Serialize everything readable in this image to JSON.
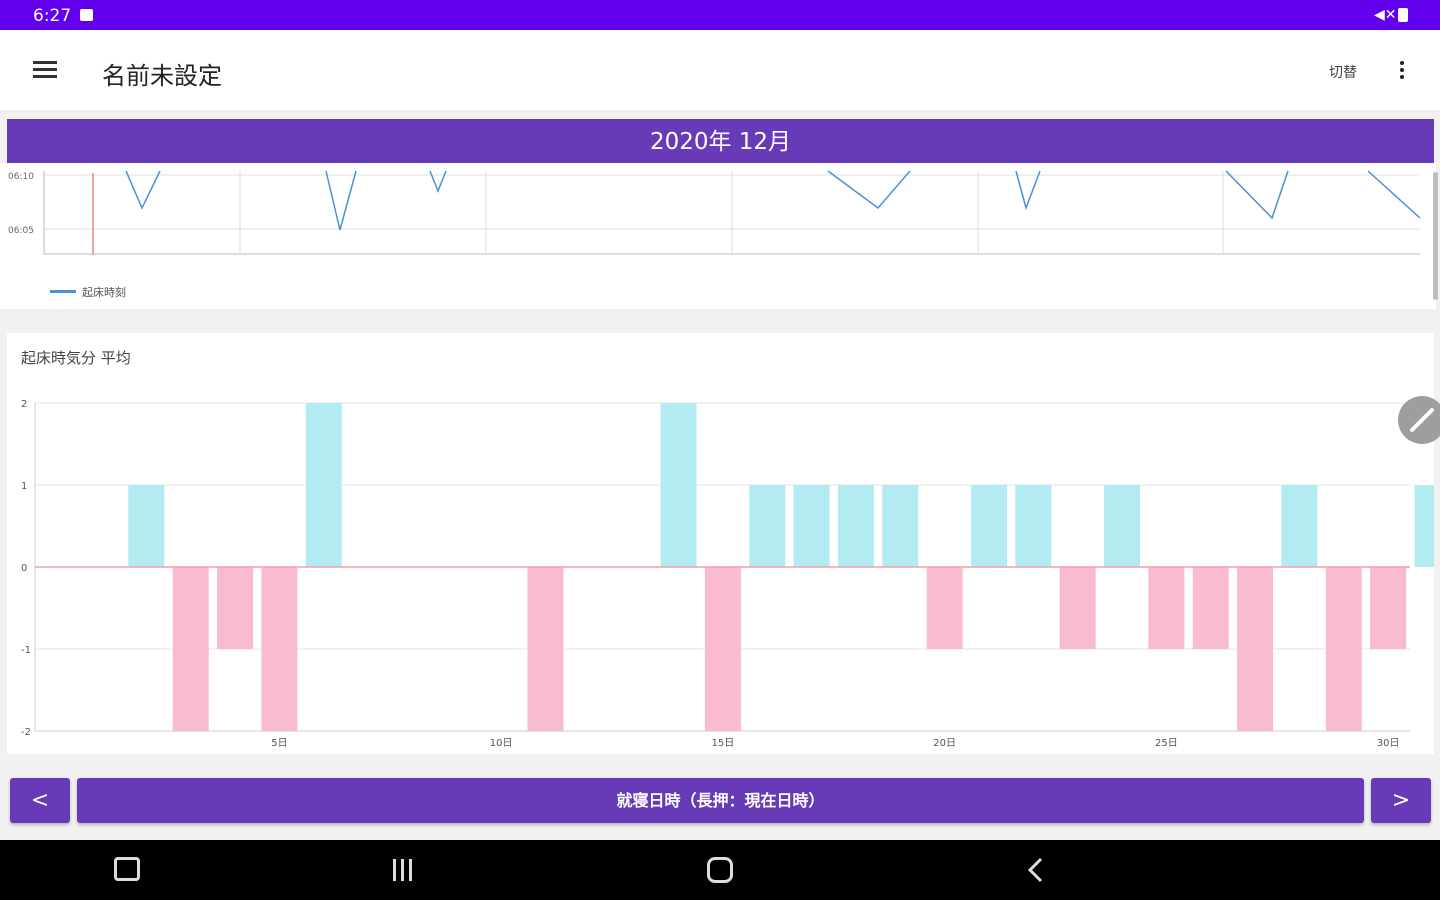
{
  "status_bar": {
    "time": "6:27",
    "icons": [
      "image-icon",
      "volume-mute-icon",
      "battery-icon"
    ]
  },
  "app_bar": {
    "title": "名前未設定",
    "switch_label": "切替",
    "menu_icon": "hamburger-icon",
    "overflow_icon": "more-vert-icon"
  },
  "month_header": {
    "label": "2020年 12月"
  },
  "top_chart": {
    "type": "line",
    "y_ticks": [
      "06:10",
      "06:05"
    ],
    "legend": "起床時刻",
    "line_color": "#4a90d9",
    "today_marker_color": "#f4a0a8"
  },
  "bar_chart_title": "起床時気分 平均",
  "chart_data": {
    "type": "bar",
    "title": "起床時気分 平均",
    "x": [
      1,
      2,
      3,
      4,
      5,
      6,
      7,
      8,
      9,
      10,
      11,
      12,
      13,
      14,
      15,
      16,
      17,
      18,
      19,
      20,
      21,
      22,
      23,
      24,
      25,
      26,
      27,
      28,
      29,
      30,
      31
    ],
    "values": [
      0,
      1,
      -2,
      -1,
      -2,
      2,
      0,
      0,
      0,
      0,
      -2,
      0,
      0,
      2,
      -2,
      1,
      1,
      1,
      1,
      -1,
      1,
      1,
      -1,
      1,
      -1,
      -1,
      -2,
      1,
      -2,
      -1,
      1
    ],
    "y_ticks": [
      "2",
      "1",
      "0",
      "-1",
      "-2"
    ],
    "x_ticks": [
      {
        "day": 5,
        "label": "5日"
      },
      {
        "day": 10,
        "label": "10日"
      },
      {
        "day": 15,
        "label": "15日"
      },
      {
        "day": 20,
        "label": "20日"
      },
      {
        "day": 25,
        "label": "25日"
      },
      {
        "day": 30,
        "label": "30日"
      }
    ],
    "ylim": [
      -2,
      2
    ],
    "positive_color": "#b2ebf2",
    "negative_color": "#f8bbd0",
    "zero_line_color": "#f4a0a8"
  },
  "bottom_buttons": {
    "prev": "<",
    "next": ">",
    "main": "就寝日時（長押：現在日時）"
  },
  "nav_bar": {
    "icons": [
      "screenshot-icon",
      "recents-icon",
      "home-icon",
      "back-icon"
    ]
  }
}
